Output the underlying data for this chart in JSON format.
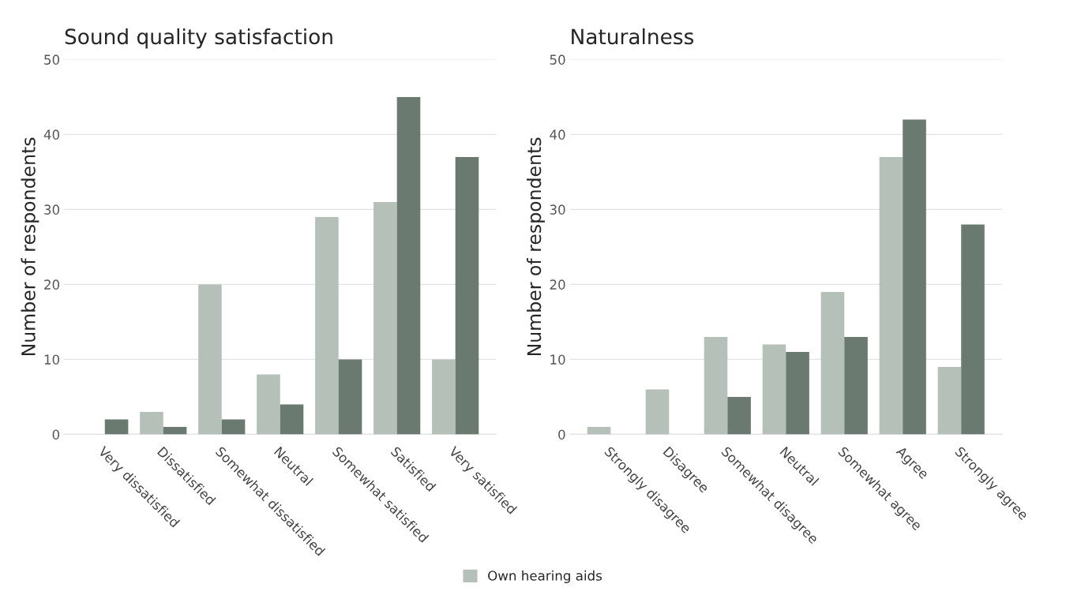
{
  "chart_data": [
    {
      "type": "bar",
      "title": "Sound quality satisfaction",
      "ylabel": "Number of respondents",
      "categories": [
        "Very dissatisfied",
        "Dissatisfied",
        "Somewhat dissatisfied",
        "Neutral",
        "Somewhat satisfied",
        "Satisfied",
        "Very satisfied"
      ],
      "series": [
        {
          "name": "Own hearing aids",
          "color": "#b5c0b8",
          "values": [
            0,
            3,
            20,
            8,
            29,
            31,
            10
          ]
        },
        {
          "color": "#6b7a70",
          "values": [
            2,
            1,
            2,
            4,
            10,
            45,
            37
          ]
        }
      ],
      "ylim": [
        0,
        50
      ],
      "yticks": [
        0,
        10,
        20,
        30,
        40,
        50
      ],
      "grid": "y",
      "legend": "bottom"
    },
    {
      "type": "bar",
      "title": "Naturalness",
      "ylabel": "Number of respondents",
      "categories": [
        "Strongly disagree",
        "Disagree",
        "Somewhat disagree",
        "Neutral",
        "Somewhat agree",
        "Agree",
        "Strongly agree"
      ],
      "series": [
        {
          "name": "Own hearing aids",
          "color": "#b5c0b8",
          "values": [
            1,
            6,
            13,
            12,
            19,
            37,
            9
          ]
        },
        {
          "color": "#6b7a70",
          "values": [
            0,
            0,
            5,
            11,
            13,
            42,
            28
          ]
        }
      ],
      "ylim": [
        0,
        50
      ],
      "yticks": [
        0,
        10,
        20,
        30,
        40,
        50
      ],
      "grid": "y"
    }
  ]
}
